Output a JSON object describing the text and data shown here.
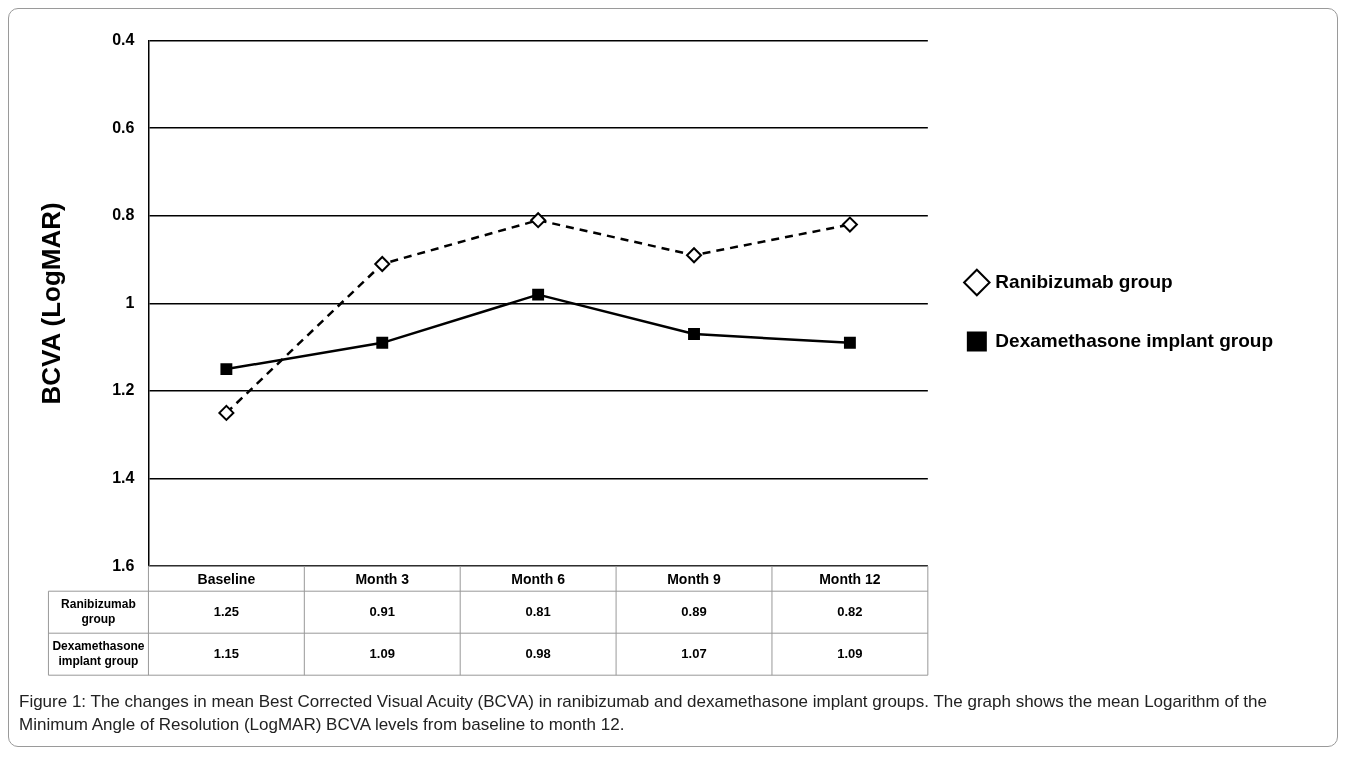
{
  "chart_data": {
    "type": "line",
    "ylabel": "BCVA (LogMAR)",
    "categories": [
      "Baseline",
      "Month 3",
      "Month 6",
      "Month 9",
      "Month 12"
    ],
    "series": [
      {
        "name": "Ranibizumab group",
        "color": "#000000",
        "values": [
          1.25,
          0.91,
          0.81,
          0.89,
          0.82
        ],
        "marker": "diamond",
        "line_style": "dashed"
      },
      {
        "name": "Dexamethasone implant group",
        "color": "#000000",
        "values": [
          1.15,
          1.09,
          0.98,
          1.07,
          1.09
        ],
        "marker": "square",
        "line_style": "solid"
      }
    ],
    "ylim": [
      1.6,
      0.4
    ],
    "yticks": [
      0.4,
      0.6,
      0.8,
      1,
      1.2,
      1.4,
      1.6
    ],
    "grid": "y",
    "legend": "right",
    "data_labels": true,
    "annotations": [
      "Figure 1: The changes in mean Best Corrected Visual Acuity (BCVA) in ranibizumab and dexamethasone implant groups. The graph shows the mean Logarithm of the Minimum Angle of Resolution (LogMAR) BCVA levels from baseline to month 12."
    ]
  }
}
